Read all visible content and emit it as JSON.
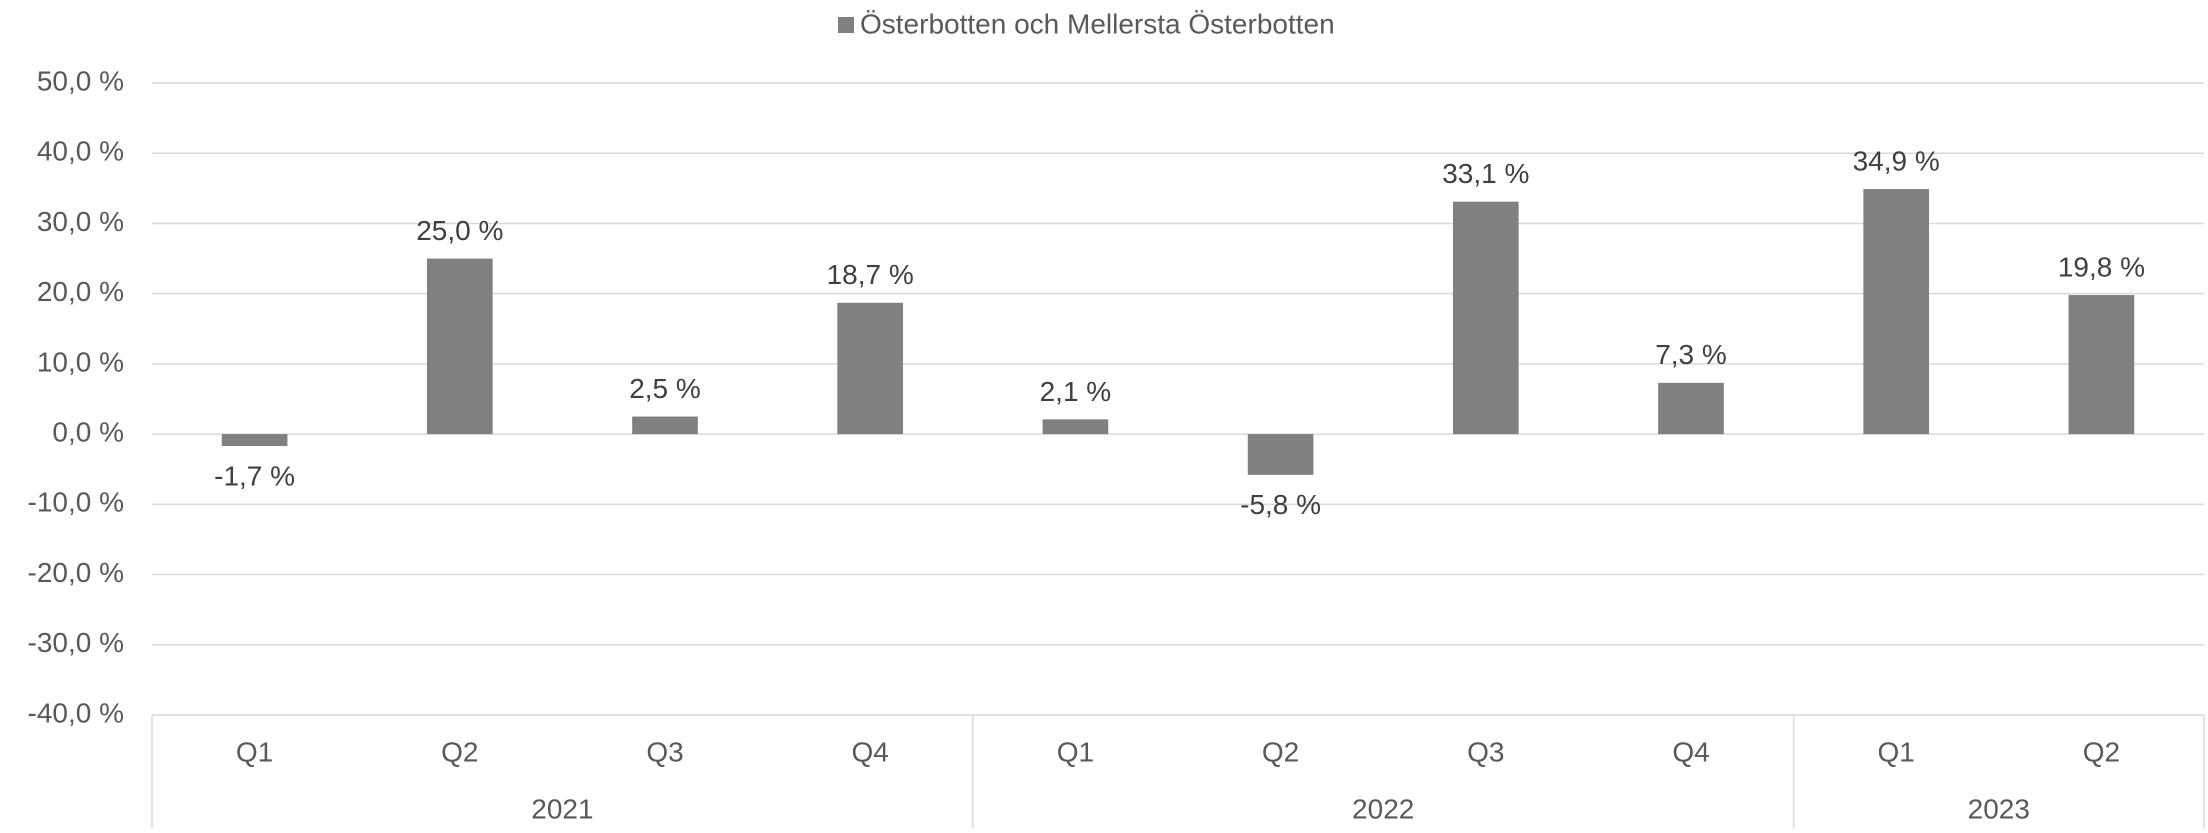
{
  "chart_data": {
    "type": "bar",
    "legend": "Österbotten och Mellersta Österbotten",
    "legend_position": "top",
    "color": "#808080",
    "groups": [
      {
        "label": "2021",
        "categories": [
          "Q1",
          "Q2",
          "Q3",
          "Q4"
        ]
      },
      {
        "label": "2022",
        "categories": [
          "Q1",
          "Q2",
          "Q3",
          "Q4"
        ]
      },
      {
        "label": "2023",
        "categories": [
          "Q1",
          "Q2"
        ]
      }
    ],
    "values": [
      -1.7,
      25.0,
      2.5,
      18.7,
      2.1,
      -5.8,
      33.1,
      7.3,
      34.9,
      19.8
    ],
    "value_labels": [
      "-1,7 %",
      "25,0 %",
      "2,5 %",
      "18,7 %",
      "2,1 %",
      "-5,8 %",
      "33,1 %",
      "7,3 %",
      "34,9 %",
      "19,8 %"
    ],
    "ylim": [
      -40,
      50
    ],
    "yticks": [
      {
        "value": -40,
        "label": "-40,0 %"
      },
      {
        "value": -30,
        "label": "-30,0 %"
      },
      {
        "value": -20,
        "label": "-20,0 %"
      },
      {
        "value": -10,
        "label": "-10,0 %"
      },
      {
        "value": 0,
        "label": "0,0 %"
      },
      {
        "value": 10,
        "label": "10,0 %"
      },
      {
        "value": 20,
        "label": "20,0 %"
      },
      {
        "value": 30,
        "label": "30,0 %"
      },
      {
        "value": 40,
        "label": "40,0 %"
      },
      {
        "value": 50,
        "label": "50,0 %"
      }
    ],
    "grid": true
  }
}
